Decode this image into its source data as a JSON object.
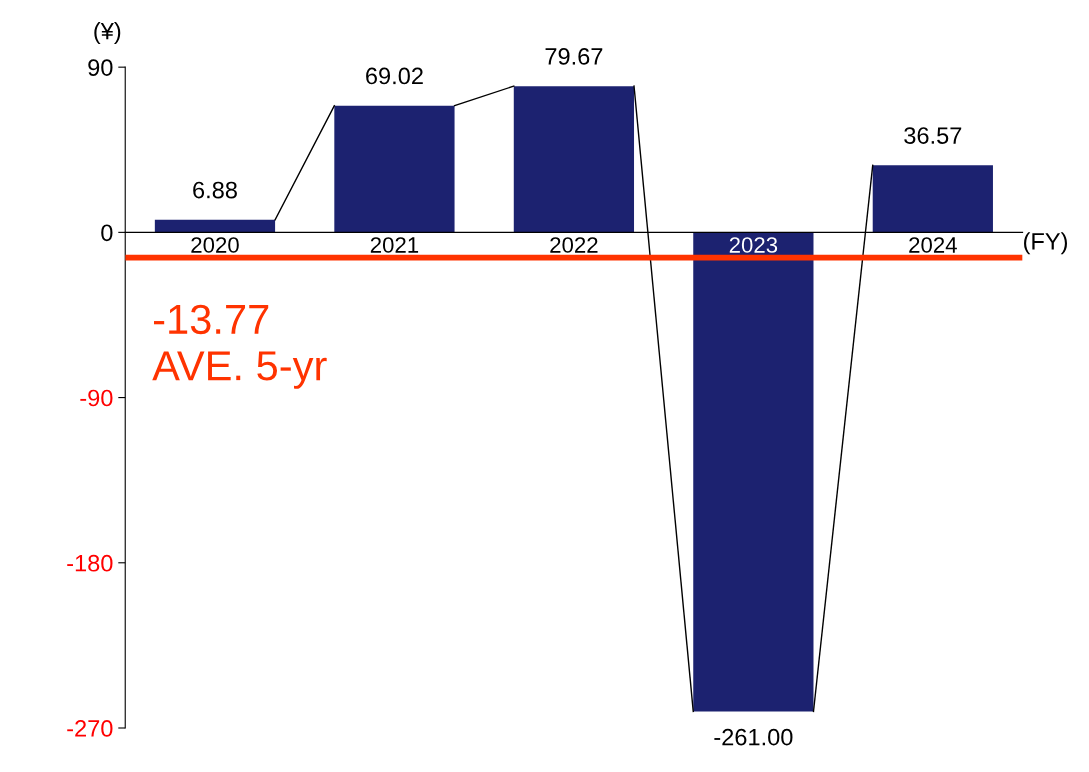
{
  "chart_data": {
    "type": "bar",
    "categories": [
      "2020",
      "2021",
      "2022",
      "2023",
      "2024"
    ],
    "values": [
      6.88,
      69.02,
      79.67,
      -261.0,
      36.57
    ],
    "value_labels": [
      "6.88",
      "69.02",
      "79.67",
      "-261.00",
      "36.57"
    ],
    "color": "#1c2270",
    "ylabel": "(¥)",
    "xlabel": "(FY)",
    "ylim": [
      -270,
      90
    ],
    "yticks": [
      90,
      0,
      -90,
      -180,
      -270
    ],
    "ref_lines": [
      {
        "axis": "y",
        "value": -13.77,
        "label": "-13.77\nAVE. 5-yr",
        "color": "#ff3300"
      }
    ],
    "legend": false
  }
}
